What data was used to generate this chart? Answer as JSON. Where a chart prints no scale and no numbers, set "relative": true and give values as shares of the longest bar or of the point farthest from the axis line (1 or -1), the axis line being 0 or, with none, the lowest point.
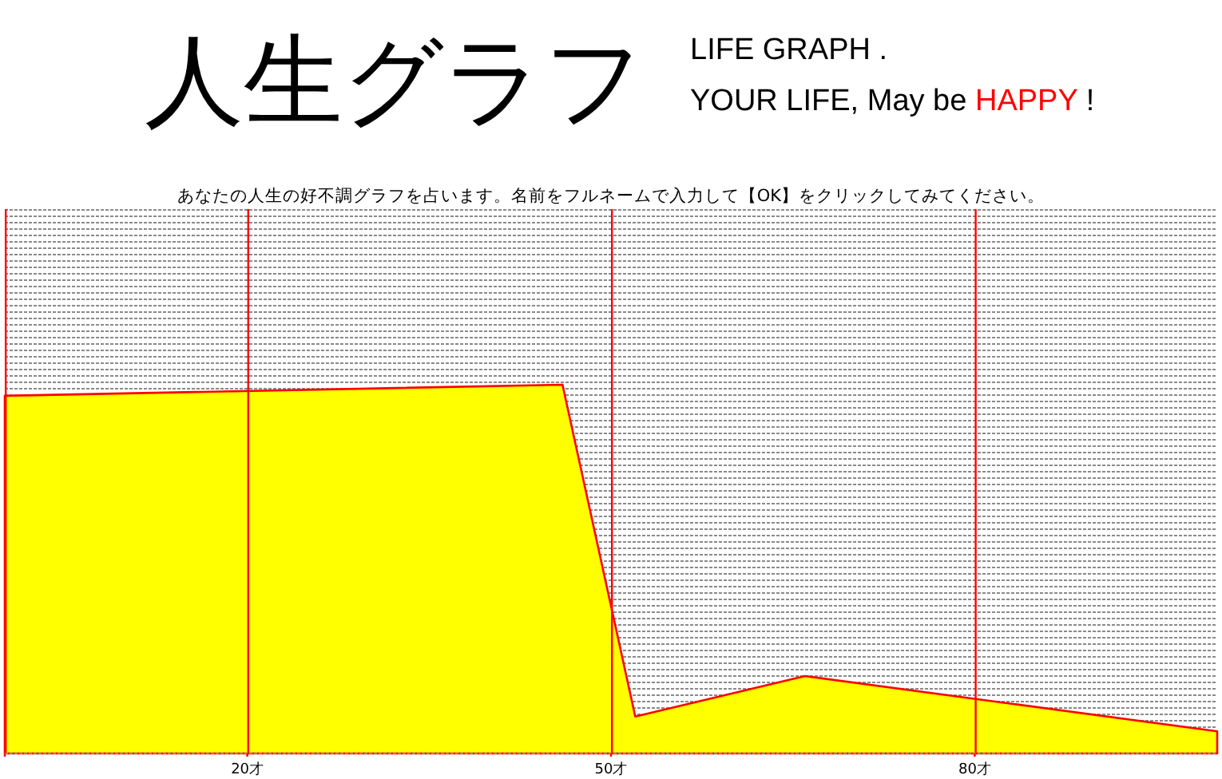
{
  "chart_data": {
    "type": "area",
    "title": "人生グラフ",
    "subtitle": "LIFE GRAPH .\nYOUR LIFE, May be HAPPY !",
    "annotations": [
      "あなたの人生の好不調グラフを占います。名前をフルネームで入力して【OK】をクリックしてみてください。"
    ],
    "relative": true,
    "x": [
      0,
      46,
      52,
      66,
      100
    ],
    "series": [
      {
        "color": "#ffff00",
        "values": [
          0.97,
          1,
          0.1,
          0.21,
          0.06
        ]
      }
    ],
    "xlim": [
      0,
      100
    ],
    "xticks": [
      {
        "value": 0,
        "label": null
      },
      {
        "value": 20,
        "label": "20才"
      },
      {
        "value": 50,
        "label": "50才"
      },
      {
        "value": 80,
        "label": "80才"
      }
    ],
    "grid": "x"
  }
}
